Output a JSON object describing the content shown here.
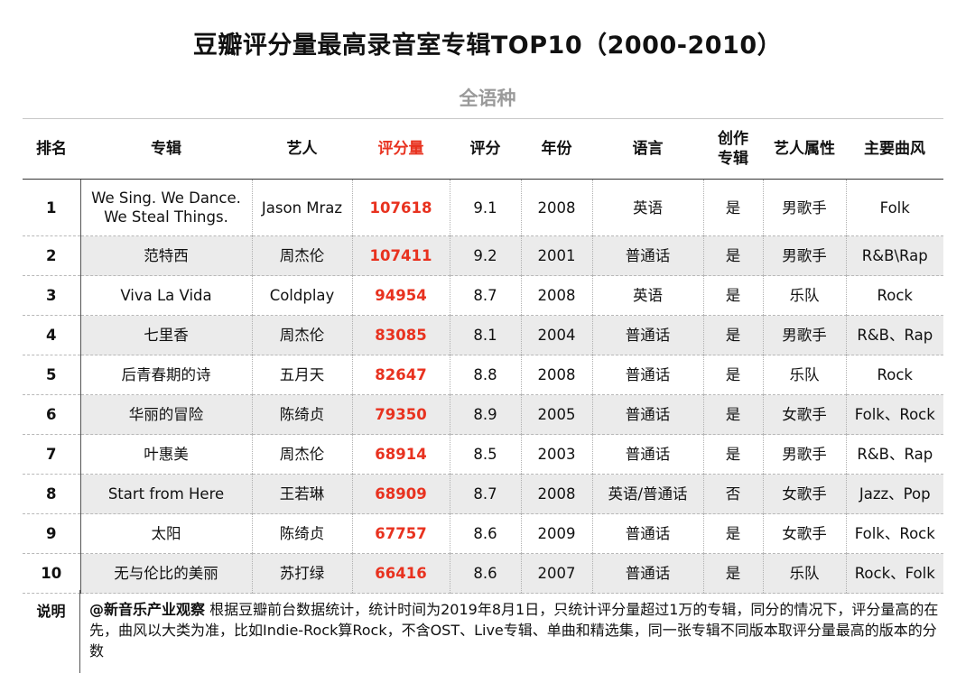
{
  "title": "豆瓣评分量最高录音室专辑TOP10（2000-2010）",
  "subtitle": "全语种",
  "headers": {
    "rank": "排名",
    "album": "专辑",
    "artist": "艺人",
    "rating_count": "评分量",
    "score": "评分",
    "year": "年份",
    "language": "语言",
    "original_line1": "创作",
    "original_line2": "专辑",
    "artist_type": "艺人属性",
    "genre": "主要曲风"
  },
  "rows": [
    {
      "rank": "1",
      "album_line1": "We Sing. We Dance.",
      "album_line2": "We Steal Things.",
      "artist": "Jason Mraz",
      "rating_count": "107618",
      "score": "9.1",
      "year": "2008",
      "language": "英语",
      "original": "是",
      "artist_type": "男歌手",
      "genre": "Folk"
    },
    {
      "rank": "2",
      "album_line1": "范特西",
      "album_line2": "",
      "artist": "周杰伦",
      "rating_count": "107411",
      "score": "9.2",
      "year": "2001",
      "language": "普通话",
      "original": "是",
      "artist_type": "男歌手",
      "genre": "R&B\\Rap"
    },
    {
      "rank": "3",
      "album_line1": "Viva La Vida",
      "album_line2": "",
      "artist": "Coldplay",
      "rating_count": "94954",
      "score": "8.7",
      "year": "2008",
      "language": "英语",
      "original": "是",
      "artist_type": "乐队",
      "genre": "Rock"
    },
    {
      "rank": "4",
      "album_line1": "七里香",
      "album_line2": "",
      "artist": "周杰伦",
      "rating_count": "83085",
      "score": "8.1",
      "year": "2004",
      "language": "普通话",
      "original": "是",
      "artist_type": "男歌手",
      "genre": "R&B、Rap"
    },
    {
      "rank": "5",
      "album_line1": "后青春期的诗",
      "album_line2": "",
      "artist": "五月天",
      "rating_count": "82647",
      "score": "8.8",
      "year": "2008",
      "language": "普通话",
      "original": "是",
      "artist_type": "乐队",
      "genre": "Rock"
    },
    {
      "rank": "6",
      "album_line1": "华丽的冒险",
      "album_line2": "",
      "artist": "陈绮贞",
      "rating_count": "79350",
      "score": "8.9",
      "year": "2005",
      "language": "普通话",
      "original": "是",
      "artist_type": "女歌手",
      "genre": "Folk、Rock"
    },
    {
      "rank": "7",
      "album_line1": "叶惠美",
      "album_line2": "",
      "artist": "周杰伦",
      "rating_count": "68914",
      "score": "8.5",
      "year": "2003",
      "language": "普通话",
      "original": "是",
      "artist_type": "男歌手",
      "genre": "R&B、Rap"
    },
    {
      "rank": "8",
      "album_line1": "Start from Here",
      "album_line2": "",
      "artist": "王若琳",
      "rating_count": "68909",
      "score": "8.7",
      "year": "2008",
      "language": "英语/普通话",
      "original": "否",
      "artist_type": "女歌手",
      "genre": "Jazz、Pop"
    },
    {
      "rank": "9",
      "album_line1": "太阳",
      "album_line2": "",
      "artist": "陈绮贞",
      "rating_count": "67757",
      "score": "8.6",
      "year": "2009",
      "language": "普通话",
      "original": "是",
      "artist_type": "女歌手",
      "genre": "Folk、Rock"
    },
    {
      "rank": "10",
      "album_line1": "无与伦比的美丽",
      "album_line2": "",
      "artist": "苏打绿",
      "rating_count": "66416",
      "score": "8.6",
      "year": "2007",
      "language": "普通话",
      "original": "是",
      "artist_type": "乐队",
      "genre": "Rock、Folk"
    }
  ],
  "note": {
    "label": "说明",
    "source": "@新音乐产业观察",
    "text": "根据豆瓣前台数据统计，统计时间为2019年8月1日，只统计评分量超过1万的专辑，同分的情况下，评分量高的在先，曲风以大类为准，比如Indie-Rock算Rock，不含OST、Live专辑、单曲和精选集，同一张专辑不同版本取评分量最高的版本的分数"
  },
  "colors": {
    "highlight": "#e8321f",
    "subtitle": "#9a9a9a",
    "zebra": "#ebebeb"
  }
}
